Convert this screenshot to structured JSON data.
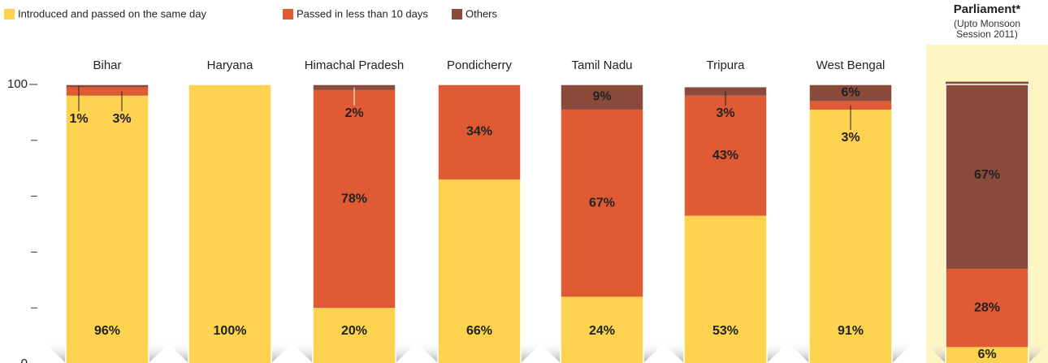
{
  "chart_data": {
    "type": "stacked_bar",
    "categories": [
      "Bihar",
      "Haryana",
      "Himachal Pradesh",
      "Pondicherry",
      "Tamil Nadu",
      "Tripura",
      "West Bengal",
      "Parliament*"
    ],
    "annotations": [
      "(Upto Monsoon",
      "Session 2011)"
    ],
    "series": [
      {
        "name": "Introduced and passed on the same day",
        "color": "#fdd24f",
        "values": [
          96,
          100,
          20,
          66,
          24,
          53,
          91,
          6
        ],
        "value_labels": [
          "96%",
          "100%",
          "20%",
          "66%",
          "24%",
          "53%",
          "91%",
          "6%"
        ]
      },
      {
        "name": "Passed in less than 10 days",
        "color": "#de5b34",
        "values": [
          3,
          0,
          78,
          34,
          67,
          43,
          3,
          28
        ],
        "value_labels": [
          "3%",
          null,
          "78%",
          "34%",
          "67%",
          "43%",
          "3%",
          "28%"
        ]
      },
      {
        "name": "Others",
        "color": "#8a4b3d",
        "values": [
          1,
          0,
          2,
          0,
          9,
          3,
          6,
          67
        ],
        "value_labels": [
          "1%",
          null,
          "2%",
          null,
          "9%",
          "3%",
          "6%",
          "67%"
        ]
      }
    ],
    "ylim": [
      0,
      100
    ],
    "yticks": [
      0,
      100
    ],
    "yminor_ticks": [
      20,
      40,
      60,
      80
    ]
  }
}
